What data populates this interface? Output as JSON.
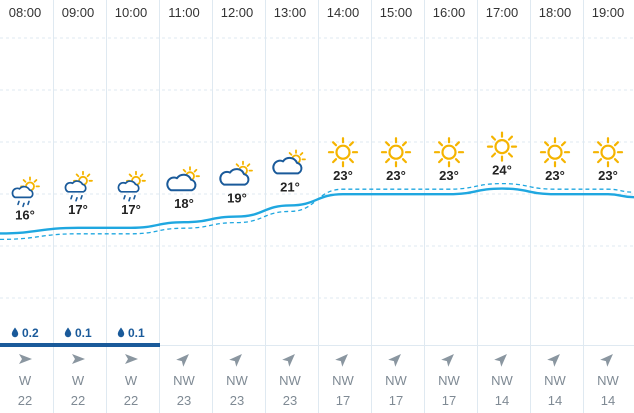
{
  "colors": {
    "temperature_line": "#1fa7e0",
    "feels_like_line": "#1fa7e0",
    "precip_bar": "#1a5a9a",
    "sun": "#f5b400",
    "cloud": "#1a5a9a",
    "grid": "#dfe9f1",
    "wind": "#8a96a0"
  },
  "icons": [
    "partly-cloudy-rain-icon",
    "partly-cloudy-icon",
    "sun-icon"
  ],
  "chart_data": {
    "type": "line",
    "x": [
      "08:00",
      "09:00",
      "10:00",
      "11:00",
      "12:00",
      "13:00",
      "14:00",
      "15:00",
      "16:00",
      "17:00",
      "18:00",
      "19:00"
    ],
    "series": [
      {
        "values": [
          16,
          17,
          17,
          18,
          19,
          21,
          23,
          23,
          23,
          24,
          23,
          23
        ]
      }
    ],
    "hours": [
      {
        "time": "08:00",
        "temp": "16°",
        "icon": "partly-cloudy-rain-icon",
        "precip": "0.2",
        "wind_dir": "W",
        "wind_speed": "22"
      },
      {
        "time": "09:00",
        "temp": "17°",
        "icon": "partly-cloudy-rain-icon",
        "precip": "0.1",
        "wind_dir": "W",
        "wind_speed": "22"
      },
      {
        "time": "10:00",
        "temp": "17°",
        "icon": "partly-cloudy-rain-icon",
        "precip": "0.1",
        "wind_dir": "W",
        "wind_speed": "22"
      },
      {
        "time": "11:00",
        "temp": "18°",
        "icon": "partly-cloudy-icon",
        "precip": "",
        "wind_dir": "NW",
        "wind_speed": "23"
      },
      {
        "time": "12:00",
        "temp": "19°",
        "icon": "partly-cloudy-icon",
        "precip": "",
        "wind_dir": "NW",
        "wind_speed": "23"
      },
      {
        "time": "13:00",
        "temp": "21°",
        "icon": "partly-cloudy-icon",
        "precip": "",
        "wind_dir": "NW",
        "wind_speed": "23"
      },
      {
        "time": "14:00",
        "temp": "23°",
        "icon": "sun-icon",
        "precip": "",
        "wind_dir": "NW",
        "wind_speed": "17"
      },
      {
        "time": "15:00",
        "temp": "23°",
        "icon": "sun-icon",
        "precip": "",
        "wind_dir": "NW",
        "wind_speed": "17"
      },
      {
        "time": "16:00",
        "temp": "23°",
        "icon": "sun-icon",
        "precip": "",
        "wind_dir": "NW",
        "wind_speed": "17"
      },
      {
        "time": "17:00",
        "temp": "24°",
        "icon": "sun-icon",
        "precip": "",
        "wind_dir": "NW",
        "wind_speed": "14"
      },
      {
        "time": "18:00",
        "temp": "23°",
        "icon": "sun-icon",
        "precip": "",
        "wind_dir": "NW",
        "wind_speed": "14"
      },
      {
        "time": "19:00",
        "temp": "23°",
        "icon": "sun-icon",
        "precip": "",
        "wind_dir": "NW",
        "wind_speed": "14"
      }
    ],
    "precip_mm": [
      0.2,
      0.1,
      0.1,
      0,
      0,
      0,
      0,
      0,
      0,
      0,
      0,
      0
    ],
    "wind_from": [
      "W",
      "W",
      "W",
      "NW",
      "NW",
      "NW",
      "NW",
      "NW",
      "NW",
      "NW",
      "NW",
      "NW"
    ],
    "grid": true
  }
}
